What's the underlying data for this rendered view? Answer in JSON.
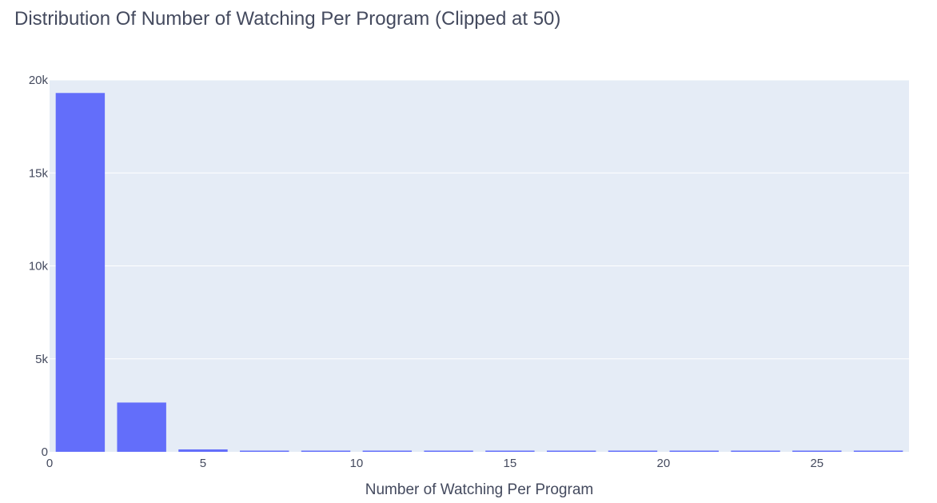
{
  "chart_data": {
    "type": "bar",
    "title": "Distribution Of Number of Watching Per Program (Clipped at 50)",
    "xlabel": "Number of Watching Per Program",
    "ylabel": "",
    "xlim": [
      0,
      28
    ],
    "ylim": [
      0,
      20000
    ],
    "bin_width": 2,
    "x": [
      1,
      3,
      5,
      7,
      9,
      11,
      13,
      15,
      17,
      19,
      21,
      23,
      25,
      27
    ],
    "values": [
      19300,
      2650,
      130,
      50,
      35,
      30,
      20,
      5,
      25,
      5,
      30,
      5,
      5,
      60
    ],
    "x_ticks": [
      0,
      5,
      10,
      15,
      20,
      25
    ],
    "x_tick_labels": [
      "0",
      "5",
      "10",
      "15",
      "20",
      "25"
    ],
    "y_ticks": [
      0,
      5000,
      10000,
      15000,
      20000
    ],
    "y_tick_labels": [
      "0",
      "5k",
      "10k",
      "15k",
      "20k"
    ],
    "grid": true,
    "legend": "none",
    "colors": {
      "bar": "#636efa",
      "plot_background": "#e5ecf6",
      "grid": "#ffffff",
      "text": "#444a5e"
    }
  }
}
